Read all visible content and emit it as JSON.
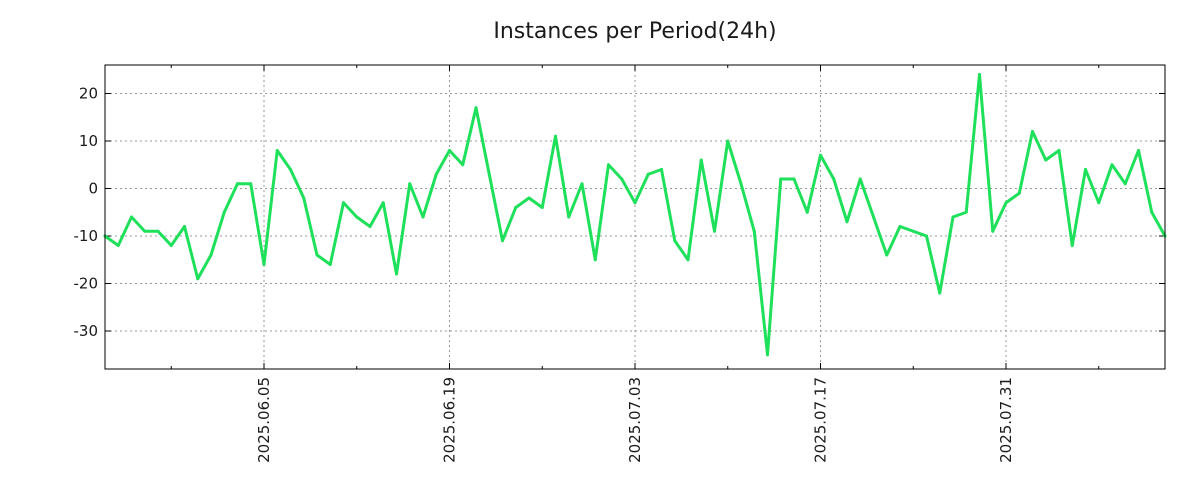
{
  "chart_data": {
    "type": "line",
    "title": "Instances per Period(24h)",
    "xlabel": "",
    "ylabel": "",
    "ylim": [
      -38,
      26
    ],
    "xlim_index": [
      0,
      80
    ],
    "y_ticks": [
      20,
      10,
      0,
      -10,
      -20,
      -30
    ],
    "y_tick_labels": [
      "20",
      "10",
      "0",
      "-10",
      "-20",
      "-30"
    ],
    "x_ticks": [
      {
        "index": 12,
        "label": "2025.06.05"
      },
      {
        "index": 26,
        "label": "2025.06.19"
      },
      {
        "index": 40,
        "label": "2025.07.03"
      },
      {
        "index": 54,
        "label": "2025.07.17"
      },
      {
        "index": 68,
        "label": "2025.07.31"
      }
    ],
    "minor_x_ticks": [
      5,
      19,
      33,
      47,
      61,
      75
    ],
    "grid": true,
    "series": [
      {
        "name": "instances",
        "color": "#1ee05a",
        "values": [
          -10,
          -12,
          -6,
          -9,
          -9,
          -12,
          -8,
          -19,
          -14,
          -5,
          1,
          1,
          -16,
          8,
          4,
          -2,
          -14,
          -16,
          -3,
          -6,
          -8,
          -3,
          -18,
          1,
          -6,
          3,
          8,
          5,
          17,
          3,
          -11,
          -4,
          -2,
          -4,
          11,
          -6,
          1,
          -15,
          5,
          2,
          -3,
          3,
          4,
          -11,
          -15,
          6,
          -9,
          10,
          1,
          -9,
          -35,
          2,
          2,
          -5,
          7,
          2,
          -7,
          2,
          -6,
          -14,
          -8,
          -9,
          -10,
          -22,
          -6,
          -5,
          24,
          -9,
          -3,
          -1,
          12,
          6,
          8,
          -12,
          4,
          -3,
          5,
          1,
          8,
          -5,
          -10
        ]
      }
    ]
  }
}
